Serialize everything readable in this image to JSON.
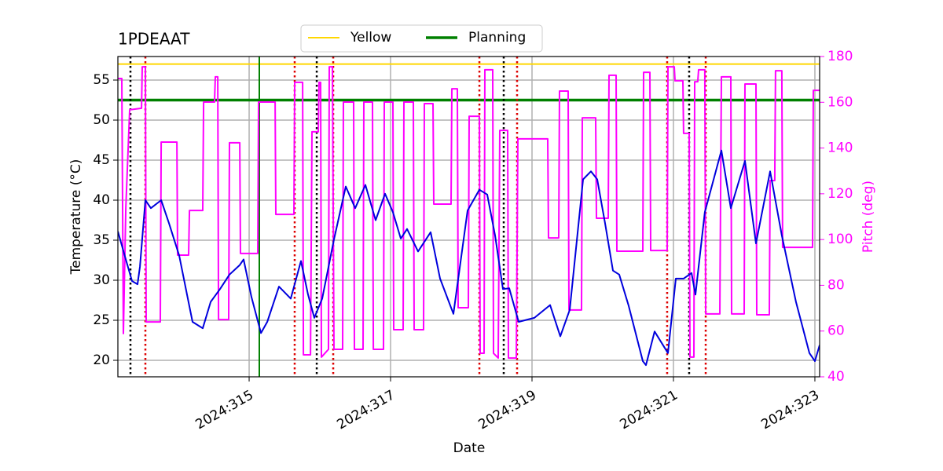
{
  "chart_data": {
    "type": "line",
    "title": "1PDEAAT",
    "xlabel": "Date",
    "ylabel": "Temperature (°C)",
    "y2label": "Pitch (deg)",
    "y2color": "#ff00ff",
    "xlim": [
      313.144,
      323.067
    ],
    "ylim": [
      17.94,
      57.94
    ],
    "y2lim": [
      40,
      180
    ],
    "xticks": [
      {
        "value": 315,
        "label": "2024:315"
      },
      {
        "value": 317,
        "label": "2024:317"
      },
      {
        "value": 319,
        "label": "2024:319"
      },
      {
        "value": 321,
        "label": "2024:321"
      },
      {
        "value": 323,
        "label": "2024:323"
      }
    ],
    "yticks": [
      20,
      25,
      30,
      35,
      40,
      45,
      50,
      55
    ],
    "y2ticks": [
      40,
      60,
      80,
      100,
      120,
      140,
      160,
      180
    ],
    "grid": true,
    "legend_loc": "upper center",
    "lines": [
      {
        "color": "#0000dd",
        "axis": "y",
        "x": [
          313.144,
          313.256,
          313.344,
          313.422,
          313.456,
          313.533,
          313.611,
          313.756,
          313.867,
          314.011,
          314.122,
          314.2,
          314.344,
          314.456,
          314.589,
          314.722,
          314.867,
          314.922,
          315.033,
          315.167,
          315.256,
          315.422,
          315.589,
          315.733,
          315.833,
          315.922,
          316.033,
          316.2,
          316.367,
          316.5,
          316.644,
          316.789,
          316.922,
          317.033,
          317.144,
          317.233,
          317.389,
          317.567,
          317.7,
          317.889,
          318.089,
          318.256,
          318.367,
          318.478,
          318.589,
          318.678,
          318.811,
          319.033,
          319.256,
          319.4,
          319.533,
          319.722,
          319.833,
          319.922,
          320.033,
          320.144,
          320.233,
          320.367,
          320.567,
          320.611,
          320.733,
          320.922,
          321.033,
          321.144,
          321.256,
          321.311,
          321.444,
          321.678,
          321.811,
          322.011,
          322.167,
          322.367,
          322.533,
          322.733,
          322.922,
          323.0,
          323.067
        ],
        "values": [
          36.1,
          32.6,
          29.9,
          29.5,
          31.7,
          40.0,
          39.0,
          40.0,
          37.1,
          33.1,
          28.2,
          24.8,
          24.0,
          27.3,
          28.9,
          30.7,
          31.9,
          32.6,
          27.9,
          23.4,
          24.8,
          29.2,
          27.7,
          32.4,
          28.2,
          25.3,
          27.7,
          35.1,
          41.7,
          39.0,
          41.9,
          37.5,
          40.8,
          38.5,
          35.2,
          36.4,
          33.6,
          36.0,
          30.2,
          25.8,
          38.7,
          41.3,
          40.7,
          35.6,
          28.9,
          29.0,
          24.8,
          25.3,
          26.9,
          23.0,
          26.3,
          42.6,
          43.6,
          42.6,
          37.1,
          31.2,
          30.7,
          26.8,
          19.9,
          19.4,
          23.6,
          20.9,
          30.2,
          30.2,
          30.9,
          28.2,
          38.5,
          46.2,
          39.0,
          44.9,
          34.6,
          43.6,
          35.6,
          27.3,
          20.9,
          19.9,
          21.9
        ]
      },
      {
        "color": "#ff00ff",
        "axis": "y2",
        "x": [
          313.144,
          313.2,
          313.222,
          313.256,
          313.311,
          313.478,
          313.489,
          313.533,
          313.544,
          313.744,
          313.756,
          313.978,
          313.989,
          314.144,
          314.156,
          314.344,
          314.356,
          314.511,
          314.522,
          314.556,
          314.567,
          314.711,
          314.722,
          314.867,
          314.878,
          315.122,
          315.133,
          315.367,
          315.378,
          315.633,
          315.644,
          315.756,
          315.767,
          315.867,
          315.889,
          315.978,
          315.989,
          316.011,
          316.022,
          316.122,
          316.133,
          316.178,
          316.2,
          316.322,
          316.333,
          316.478,
          316.489,
          316.611,
          316.622,
          316.744,
          316.756,
          316.9,
          316.911,
          317.033,
          317.044,
          317.178,
          317.189,
          317.322,
          317.333,
          317.467,
          317.478,
          317.6,
          317.611,
          317.856,
          317.867,
          317.944,
          317.956,
          318.1,
          318.111,
          318.256,
          318.267,
          318.322,
          318.333,
          318.444,
          318.456,
          318.522,
          318.544,
          318.656,
          318.667,
          318.778,
          318.8,
          319.222,
          319.233,
          319.378,
          319.389,
          319.511,
          319.522,
          319.7,
          319.711,
          319.9,
          319.911,
          320.078,
          320.089,
          320.189,
          320.2,
          320.567,
          320.578,
          320.667,
          320.678,
          320.911,
          320.922,
          321.011,
          321.022,
          321.133,
          321.144,
          321.222,
          321.233,
          321.289,
          321.3,
          321.344,
          321.356,
          321.444,
          321.456,
          321.656,
          321.678,
          321.811,
          321.822,
          322.0,
          322.011,
          322.167,
          322.178,
          322.356,
          322.367,
          322.433,
          322.444,
          322.533,
          322.544,
          322.967,
          322.978,
          323.067
        ],
        "values": [
          170.4,
          170.4,
          58.9,
          113.8,
          156.7,
          157.4,
          175.5,
          175.5,
          64.0,
          64.0,
          142.6,
          142.6,
          93.2,
          93.2,
          112.7,
          112.7,
          160.1,
          160.1,
          171.1,
          171.1,
          65.0,
          65.0,
          142.3,
          142.3,
          93.9,
          93.9,
          160.1,
          160.1,
          111.0,
          111.0,
          168.7,
          168.7,
          49.6,
          49.6,
          147.1,
          147.1,
          168.7,
          168.7,
          48.6,
          52.0,
          175.5,
          175.5,
          52.0,
          52.0,
          160.1,
          160.1,
          52.0,
          52.0,
          160.1,
          160.1,
          52.0,
          52.0,
          160.1,
          160.1,
          60.6,
          60.6,
          160.1,
          160.1,
          60.6,
          60.6,
          159.4,
          159.4,
          115.5,
          115.5,
          165.9,
          165.9,
          70.2,
          70.2,
          153.9,
          153.9,
          50.3,
          50.3,
          174.2,
          174.2,
          50.3,
          48.2,
          147.7,
          147.7,
          48.2,
          48.2,
          144.0,
          144.0,
          100.7,
          100.7,
          164.9,
          164.9,
          69.2,
          69.2,
          153.2,
          153.2,
          109.3,
          109.3,
          171.8,
          171.8,
          94.9,
          94.9,
          173.1,
          173.1,
          95.2,
          95.2,
          175.5,
          175.5,
          169.4,
          169.4,
          146.4,
          146.4,
          48.6,
          48.6,
          169.0,
          169.0,
          174.2,
          174.2,
          67.5,
          67.5,
          171.1,
          171.1,
          67.5,
          67.5,
          168.0,
          168.0,
          67.1,
          67.1,
          125.8,
          125.8,
          173.8,
          173.8,
          96.6,
          96.6,
          165.2,
          165.2
        ]
      }
    ],
    "legend_items": [
      {
        "name": "Yellow",
        "color": "#ffd700",
        "value": 57
      },
      {
        "name": "Planning",
        "color": "#008000",
        "value": 52.5,
        "vline": 315.144
      }
    ],
    "vlines": [
      {
        "x": 313.322,
        "color": "#000000"
      },
      {
        "x": 315.956,
        "color": "#000000"
      },
      {
        "x": 318.6,
        "color": "#000000"
      },
      {
        "x": 321.222,
        "color": "#000000"
      },
      {
        "x": 313.533,
        "color": "#dd0000"
      },
      {
        "x": 315.644,
        "color": "#dd0000"
      },
      {
        "x": 316.189,
        "color": "#dd0000"
      },
      {
        "x": 318.256,
        "color": "#dd0000"
      },
      {
        "x": 318.789,
        "color": "#dd0000"
      },
      {
        "x": 320.911,
        "color": "#dd0000"
      },
      {
        "x": 321.456,
        "color": "#dd0000"
      }
    ]
  }
}
